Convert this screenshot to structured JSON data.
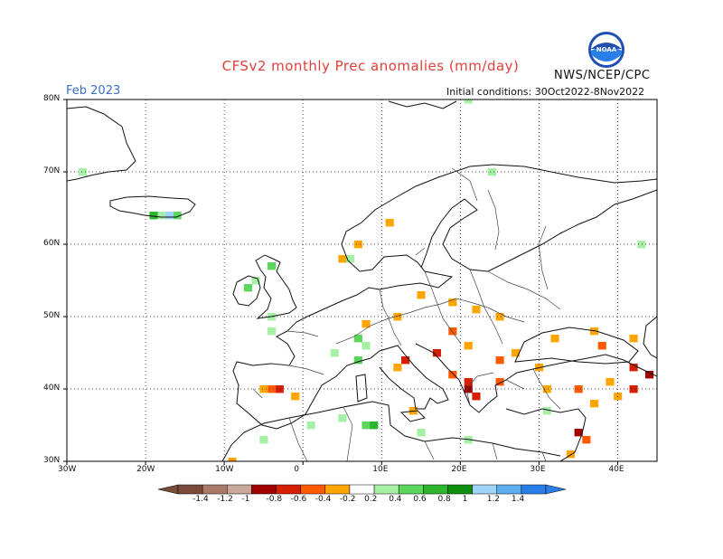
{
  "header": {
    "title": "CFSv2 monthly Prec anomalies (mm/day)",
    "period": "Feb 2023",
    "initial_conditions": "Initial conditions: 30Oct2022-8Nov2022",
    "agency": "NWS/NCEP/CPC",
    "logo_text": "NOAA"
  },
  "map": {
    "lat_labels": [
      "80N",
      "70N",
      "60N",
      "50N",
      "40N",
      "30N"
    ],
    "lon_labels": [
      "30W",
      "20W",
      "10W",
      "0",
      "10E",
      "20E",
      "30E",
      "40E"
    ]
  },
  "colorbar": {
    "labels": [
      "-1.4",
      "-1.2",
      "-1",
      "-0.8",
      "-0.6",
      "-0.4",
      "-0.2",
      "0.2",
      "0.4",
      "0.6",
      "0.8",
      "1",
      "1.2",
      "1.4"
    ],
    "colors": [
      "#7a4a3a",
      "#a9796a",
      "#c9a89c",
      "#a10000",
      "#d61e00",
      "#ff5a00",
      "#ffa500",
      "#ffffff",
      "#a6f0a6",
      "#5cd65c",
      "#2db52d",
      "#0f8f0f",
      "#a0d4f8",
      "#5aaef0",
      "#2a7ee8"
    ]
  },
  "anomalies": [
    {
      "lat": 34,
      "lon": 35,
      "cat": 3
    },
    {
      "lat": 40,
      "lon": 21,
      "cat": 3
    },
    {
      "lat": 42,
      "lon": 44,
      "cat": 3
    },
    {
      "lat": 41,
      "lon": 21,
      "cat": 4
    },
    {
      "lat": 39,
      "lon": 22,
      "cat": 4
    },
    {
      "lat": 45,
      "lon": 17,
      "cat": 4
    },
    {
      "lat": 40,
      "lon": 42,
      "cat": 4
    },
    {
      "lat": 43,
      "lon": 42,
      "cat": 4
    },
    {
      "lat": 40,
      "lon": -3,
      "cat": 4
    },
    {
      "lat": 44,
      "lon": 13,
      "cat": 4
    },
    {
      "lat": 48,
      "lon": 19,
      "cat": 5
    },
    {
      "lat": 44,
      "lon": 25,
      "cat": 5
    },
    {
      "lat": 42,
      "lon": 19,
      "cat": 5
    },
    {
      "lat": 41,
      "lon": 25,
      "cat": 5
    },
    {
      "lat": 46,
      "lon": 38,
      "cat": 5
    },
    {
      "lat": 40,
      "lon": 35,
      "cat": 5
    },
    {
      "lat": 40,
      "lon": -4,
      "cat": 5
    },
    {
      "lat": 33,
      "lon": 36,
      "cat": 5
    },
    {
      "lat": 52,
      "lon": 19,
      "cat": 6
    },
    {
      "lat": 51,
      "lon": 22,
      "cat": 6
    },
    {
      "lat": 53,
      "lon": 15,
      "cat": 6
    },
    {
      "lat": 50,
      "lon": 25,
      "cat": 6
    },
    {
      "lat": 49,
      "lon": 8,
      "cat": 6
    },
    {
      "lat": 50,
      "lon": 12,
      "cat": 6
    },
    {
      "lat": 46,
      "lon": 21,
      "cat": 6
    },
    {
      "lat": 45,
      "lon": 27,
      "cat": 6
    },
    {
      "lat": 47,
      "lon": 32,
      "cat": 6
    },
    {
      "lat": 48,
      "lon": 37,
      "cat": 6
    },
    {
      "lat": 47,
      "lon": 42,
      "cat": 6
    },
    {
      "lat": 43,
      "lon": 30,
      "cat": 6
    },
    {
      "lat": 40,
      "lon": 31,
      "cat": 6
    },
    {
      "lat": 39,
      "lon": 40,
      "cat": 6
    },
    {
      "lat": 38,
      "lon": 37,
      "cat": 6
    },
    {
      "lat": 41,
      "lon": 39,
      "cat": 6
    },
    {
      "lat": 40,
      "lon": -5,
      "cat": 6
    },
    {
      "lat": 39,
      "lon": -1,
      "cat": 6
    },
    {
      "lat": 43,
      "lon": 12,
      "cat": 6
    },
    {
      "lat": 37,
      "lon": 14,
      "cat": 6
    },
    {
      "lat": 60,
      "lon": 7,
      "cat": 6
    },
    {
      "lat": 63,
      "lon": 11,
      "cat": 6
    },
    {
      "lat": 58,
      "lon": 5,
      "cat": 6
    },
    {
      "lat": 31,
      "lon": 34,
      "cat": 6
    },
    {
      "lat": 30,
      "lon": -9,
      "cat": 6
    },
    {
      "lat": 50,
      "lon": -4,
      "cat": 8
    },
    {
      "lat": 48,
      "lon": -4,
      "cat": 8
    },
    {
      "lat": 45,
      "lon": 4,
      "cat": 8
    },
    {
      "lat": 46,
      "lon": 8,
      "cat": 8
    },
    {
      "lat": 55,
      "lon": -6,
      "cat": 8
    },
    {
      "lat": 58,
      "lon": 6,
      "cat": 8
    },
    {
      "lat": 36,
      "lon": 5,
      "cat": 8
    },
    {
      "lat": 35,
      "lon": 1,
      "cat": 8
    },
    {
      "lat": 34,
      "lon": 15,
      "cat": 8
    },
    {
      "lat": 33,
      "lon": 21,
      "cat": 8
    },
    {
      "lat": 37,
      "lon": 31,
      "cat": 8
    },
    {
      "lat": 33,
      "lon": -5,
      "cat": 8
    },
    {
      "lat": 64,
      "lon": -18,
      "cat": 8
    },
    {
      "lat": 70,
      "lon": -28,
      "cat": 8
    },
    {
      "lat": 60,
      "lon": 43,
      "cat": 8
    },
    {
      "lat": 70,
      "lon": 24,
      "cat": 8
    },
    {
      "lat": 80,
      "lon": 21,
      "cat": 8
    },
    {
      "lat": 57,
      "lon": -4,
      "cat": 9
    },
    {
      "lat": 54,
      "lon": -7,
      "cat": 9
    },
    {
      "lat": 44,
      "lon": 7,
      "cat": 9
    },
    {
      "lat": 47,
      "lon": 7,
      "cat": 9
    },
    {
      "lat": 35,
      "lon": 8,
      "cat": 9
    },
    {
      "lat": 64,
      "lon": -16,
      "cat": 9
    },
    {
      "lat": 35,
      "lon": 9,
      "cat": 10
    },
    {
      "lat": 64,
      "lon": -19,
      "cat": 10
    },
    {
      "lat": 64,
      "lon": -17,
      "cat": 12
    }
  ]
}
